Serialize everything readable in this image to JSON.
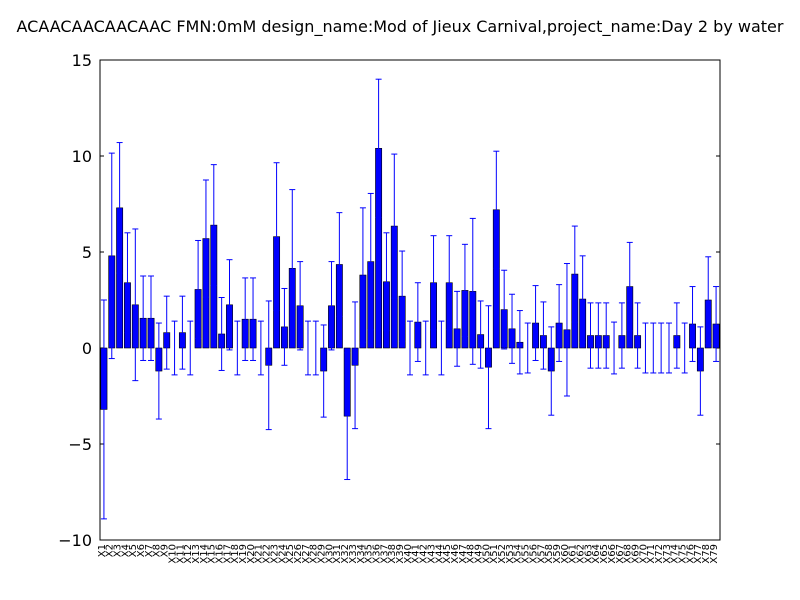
{
  "chart_data": {
    "type": "bar",
    "title": "ACAACAACAACAAC  FMN:0mM  design_name:Mod of Jieux Carnival,project_name:Day 2 by water",
    "categories": [
      "X1",
      "X2",
      "X3",
      "X4",
      "X5",
      "X6",
      "X7",
      "X8",
      "X9",
      "X10",
      "X11",
      "X12",
      "X13",
      "X14",
      "X15",
      "X16",
      "X17",
      "X18",
      "X19",
      "X20",
      "X21",
      "X22",
      "X23",
      "X24",
      "X25",
      "X26",
      "X27",
      "X28",
      "X29",
      "X30",
      "X31",
      "X32",
      "X33",
      "X34",
      "X35",
      "X36",
      "X37",
      "X38",
      "X39",
      "X40",
      "X41",
      "X42",
      "X43",
      "X44",
      "X45",
      "X46",
      "X47",
      "X48",
      "X49",
      "X50",
      "X51",
      "X52",
      "X53",
      "X54",
      "X55",
      "X56",
      "X57",
      "X58",
      "X59",
      "X60",
      "X61",
      "X62",
      "X63",
      "X64",
      "X65",
      "X66",
      "X67",
      "X68",
      "X69",
      "X70",
      "X71",
      "X72",
      "X73",
      "X74",
      "X75",
      "X76",
      "X77",
      "X78",
      "X79"
    ],
    "values": [
      -3.2,
      4.8,
      7.3,
      3.4,
      2.25,
      1.55,
      1.55,
      -1.2,
      0.8,
      0,
      0.8,
      0,
      3.05,
      5.7,
      6.4,
      0.73,
      2.25,
      0,
      1.5,
      1.5,
      0,
      -0.9,
      5.8,
      1.1,
      4.15,
      2.2,
      0,
      0,
      -1.2,
      2.2,
      4.35,
      -3.55,
      -0.9,
      3.8,
      4.5,
      10.4,
      3.45,
      6.35,
      2.7,
      0,
      1.35,
      0,
      3.4,
      0,
      3.4,
      1.0,
      3.0,
      2.95,
      0.7,
      -1.0,
      7.2,
      2.0,
      1.0,
      0.3,
      0,
      1.3,
      0.65,
      -1.2,
      1.3,
      0.95,
      3.85,
      2.55,
      0.65,
      0.65,
      0.65,
      0,
      0.65,
      3.2,
      0.65,
      0,
      0,
      0,
      0,
      0.65,
      0,
      1.25,
      -1.2,
      2.5,
      1.25
    ],
    "errors": [
      5.7,
      5.35,
      3.4,
      2.6,
      3.95,
      2.2,
      2.2,
      2.5,
      1.9,
      1.4,
      1.9,
      1.4,
      2.55,
      3.05,
      3.15,
      1.9,
      2.35,
      1.4,
      2.15,
      2.15,
      1.4,
      3.35,
      3.85,
      2.0,
      4.1,
      2.3,
      1.4,
      1.4,
      2.4,
      2.3,
      2.7,
      3.3,
      3.3,
      3.5,
      3.55,
      3.6,
      2.55,
      3.75,
      2.35,
      1.4,
      2.05,
      1.4,
      2.45,
      1.4,
      2.45,
      1.95,
      2.4,
      3.8,
      1.75,
      3.2,
      3.05,
      2.05,
      1.8,
      1.65,
      1.3,
      1.95,
      1.75,
      2.3,
      2.0,
      3.45,
      2.5,
      2.25,
      1.7,
      1.7,
      1.7,
      1.35,
      1.7,
      2.3,
      1.7,
      1.3,
      1.3,
      1.3,
      1.3,
      1.7,
      1.3,
      1.95,
      2.3,
      2.25,
      1.95
    ],
    "color": "#0000ff",
    "edgecolor": "#000000",
    "ecolor": "#0000ff",
    "ylim": [
      -10,
      15
    ],
    "yticks": [
      {
        "value": -10,
        "label": "−10"
      },
      {
        "value": -5,
        "label": "−5"
      },
      0,
      5,
      10,
      15
    ]
  }
}
